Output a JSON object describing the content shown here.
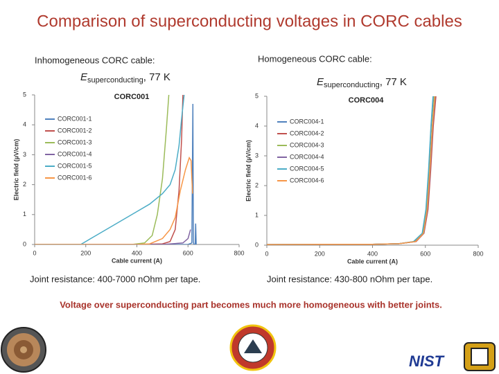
{
  "title": "Comparison of superconducting voltages in CORC cables",
  "left_heading": "Inhomogeneous CORC cable:",
  "right_heading": "Homogeneous CORC cable:",
  "left_field": {
    "symbol": "E",
    "subscript": "superconducting",
    "suffix": ", 77 K"
  },
  "right_field": {
    "symbol": "E",
    "subscript": "superconducting",
    "suffix": ", 77 K"
  },
  "left_note": "Joint resistance: 400-7000 nOhm per tape.",
  "right_note": "Joint resistance: 430-800 nOhm per tape.",
  "conclusion": "Voltage over superconducting part becomes much more homogeneous with better joints.",
  "logo_text": "NIST",
  "chart_data": [
    {
      "type": "line",
      "title": "CORC001",
      "xlabel": "Cable current (A)",
      "ylabel": "Electric field (µV/cm)",
      "xlim": [
        0,
        800
      ],
      "ylim": [
        0,
        5
      ],
      "xticks": [
        0,
        200,
        400,
        600,
        800
      ],
      "yticks": [
        0,
        1,
        2,
        3,
        4,
        5
      ],
      "series": [
        {
          "name": "CORC001-1",
          "color": "#4f81bd",
          "x": [
            0,
            400,
            600,
            615,
            619,
            621,
            623,
            628,
            630,
            632
          ],
          "values": [
            0,
            0,
            0,
            0.05,
            4.7,
            0.1,
            0,
            0,
            0.7,
            0
          ]
        },
        {
          "name": "CORC001-2",
          "color": "#c0504d",
          "x": [
            0,
            400,
            500,
            530,
            550,
            565,
            575,
            580
          ],
          "values": [
            0,
            0,
            0.02,
            0.1,
            0.5,
            1.8,
            3.5,
            5
          ]
        },
        {
          "name": "CORC001-3",
          "color": "#9bbb59",
          "x": [
            0,
            380,
            430,
            460,
            480,
            500,
            515,
            525
          ],
          "values": [
            0,
            0,
            0.05,
            0.3,
            1,
            2.2,
            3.8,
            5
          ]
        },
        {
          "name": "CORC001-4",
          "color": "#8064a2",
          "x": [
            0,
            500,
            580,
            600,
            610
          ],
          "values": [
            0,
            0,
            0.05,
            0.2,
            0.5
          ]
        },
        {
          "name": "CORC001-5",
          "color": "#4bacc6",
          "x": [
            0,
            180,
            250,
            300,
            400,
            450,
            500,
            530,
            550,
            565,
            575,
            585
          ],
          "values": [
            0,
            0,
            0.35,
            0.6,
            1.1,
            1.35,
            1.7,
            2.0,
            2.5,
            3.3,
            4.2,
            5
          ]
        },
        {
          "name": "CORC001-6",
          "color": "#f79646",
          "x": [
            0,
            400,
            450,
            500,
            530,
            550,
            570,
            590,
            605,
            612,
            615,
            618
          ],
          "values": [
            0,
            0,
            0.02,
            0.2,
            0.5,
            0.9,
            1.8,
            2.5,
            2.9,
            2.8,
            2.2,
            1.7
          ]
        }
      ]
    },
    {
      "type": "line",
      "title": "CORC004",
      "xlabel": "Cable current (A)",
      "ylabel": "Electric field (µV/cm)",
      "xlim": [
        0,
        800
      ],
      "ylim": [
        0,
        5
      ],
      "xticks": [
        0,
        200,
        400,
        600,
        800
      ],
      "yticks": [
        0,
        1,
        2,
        3,
        4,
        5
      ],
      "series": [
        {
          "name": "CORC004-1",
          "color": "#4f81bd",
          "x": [
            0,
            200,
            400,
            500,
            560,
            590,
            603,
            613,
            622,
            630
          ],
          "values": [
            0.02,
            0.03,
            0.03,
            0.05,
            0.12,
            0.4,
            1.2,
            2.5,
            4,
            5
          ]
        },
        {
          "name": "CORC004-2",
          "color": "#c0504d",
          "x": [
            0,
            200,
            400,
            500,
            565,
            595,
            610,
            620,
            630,
            640
          ],
          "values": [
            0.02,
            0.03,
            0.03,
            0.05,
            0.12,
            0.4,
            1.2,
            2.5,
            4,
            5
          ]
        },
        {
          "name": "CORC004-3",
          "color": "#9bbb59",
          "x": [
            0,
            200,
            400,
            500,
            560,
            592,
            606,
            616,
            626,
            634
          ],
          "values": [
            0.02,
            0.03,
            0.03,
            0.05,
            0.12,
            0.4,
            1.2,
            2.5,
            4,
            5
          ]
        },
        {
          "name": "CORC004-4",
          "color": "#8064a2",
          "x": [
            0,
            200,
            400,
            500,
            562,
            594,
            608,
            618,
            628,
            637
          ],
          "values": [
            0.02,
            0.03,
            0.03,
            0.05,
            0.12,
            0.4,
            1.2,
            2.5,
            4,
            5
          ]
        },
        {
          "name": "CORC004-5",
          "color": "#4bacc6",
          "x": [
            0,
            200,
            400,
            500,
            555,
            588,
            602,
            612,
            621,
            629
          ],
          "values": [
            0.02,
            0.03,
            0.03,
            0.05,
            0.12,
            0.4,
            1.2,
            2.5,
            4,
            5
          ]
        },
        {
          "name": "CORC004-6",
          "color": "#f79646",
          "x": [
            0,
            200,
            400,
            500,
            563,
            593,
            607,
            617,
            627,
            636
          ],
          "values": [
            0.02,
            0.03,
            0.03,
            0.05,
            0.12,
            0.4,
            1.2,
            2.5,
            4,
            5
          ]
        }
      ]
    }
  ]
}
